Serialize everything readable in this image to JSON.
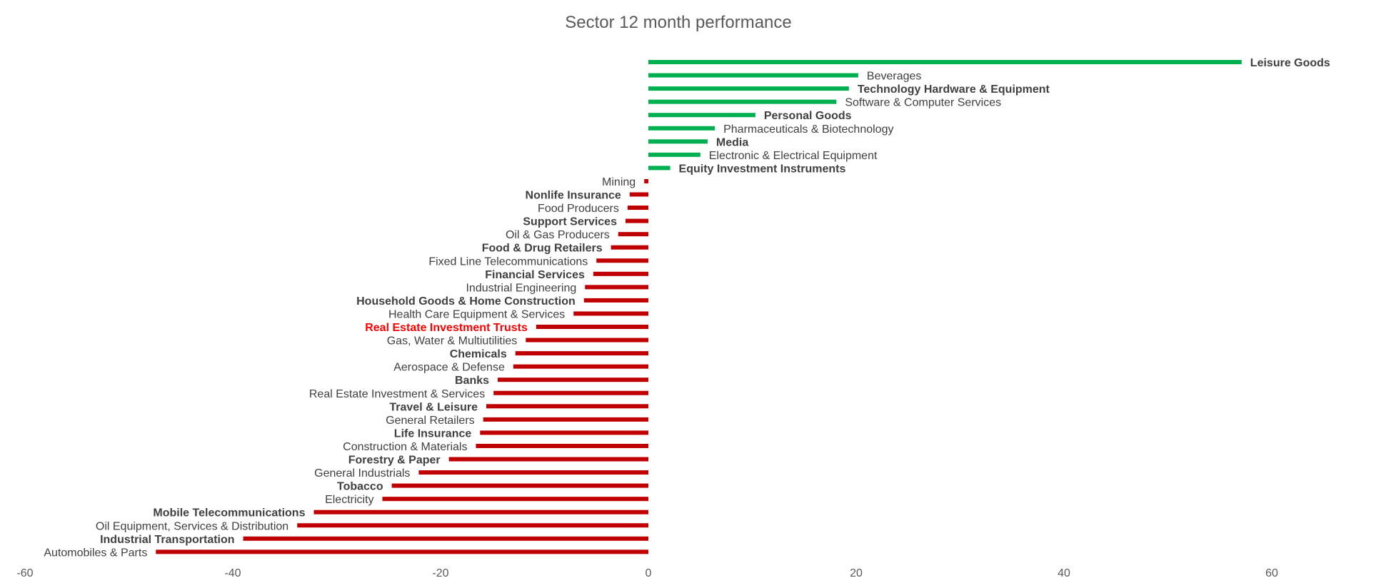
{
  "chart_data": {
    "type": "bar",
    "orientation": "horizontal",
    "title": "Sector 12 month performance",
    "xlabel": "",
    "ylabel": "",
    "xlim": [
      -60,
      70
    ],
    "xticks": [
      -60,
      -40,
      -20,
      0,
      20,
      40,
      60
    ],
    "grid": false,
    "legend": "none",
    "colors": {
      "positive": "#00b050",
      "negative": "#c00000",
      "highlight_label": "#ff0000",
      "label": "#404040"
    },
    "bars": [
      {
        "label": "Leisure Goods",
        "value": 57.1,
        "bold": true
      },
      {
        "label": "Beverages",
        "value": 20.2
      },
      {
        "label": "Technology Hardware & Equipment",
        "value": 19.3,
        "bold": true
      },
      {
        "label": "Software & Computer Services",
        "value": 18.1
      },
      {
        "label": "Personal Goods",
        "value": 10.3,
        "bold": true
      },
      {
        "label": "Pharmaceuticals & Biotechnology",
        "value": 6.4
      },
      {
        "label": "Media",
        "value": 5.7,
        "bold": true
      },
      {
        "label": "Electronic & Electrical Equipment",
        "value": 5.0
      },
      {
        "label": "Equity Investment Instruments",
        "value": 2.1,
        "bold": true
      },
      {
        "label": "Mining",
        "value": -0.4
      },
      {
        "label": "Nonlife Insurance",
        "value": -1.8,
        "bold": true
      },
      {
        "label": "Food Producers",
        "value": -2.0
      },
      {
        "label": "Support Services",
        "value": -2.2,
        "bold": true
      },
      {
        "label": "Oil & Gas Producers",
        "value": -2.9
      },
      {
        "label": "Food & Drug Retailers",
        "value": -3.6,
        "bold": true
      },
      {
        "label": "Fixed Line Telecommunications",
        "value": -5.0
      },
      {
        "label": "Financial Services",
        "value": -5.3,
        "bold": true
      },
      {
        "label": "Industrial Engineering",
        "value": -6.1
      },
      {
        "label": "Household Goods & Home Construction",
        "value": -6.2,
        "bold": true
      },
      {
        "label": "Health Care Equipment & Services",
        "value": -7.2
      },
      {
        "label": "Real Estate Investment Trusts",
        "value": -10.8,
        "bold": true,
        "highlight": true
      },
      {
        "label": "Gas, Water & Multiutilities",
        "value": -11.8
      },
      {
        "label": "Chemicals",
        "value": -12.8,
        "bold": true
      },
      {
        "label": "Aerospace & Defense",
        "value": -13.0
      },
      {
        "label": "Banks",
        "value": -14.5,
        "bold": true
      },
      {
        "label": "Real Estate Investment & Services",
        "value": -14.9
      },
      {
        "label": "Travel & Leisure",
        "value": -15.6,
        "bold": true
      },
      {
        "label": "General Retailers",
        "value": -15.9
      },
      {
        "label": "Life Insurance",
        "value": -16.2,
        "bold": true
      },
      {
        "label": "Construction & Materials",
        "value": -16.6
      },
      {
        "label": "Forestry & Paper",
        "value": -19.2,
        "bold": true
      },
      {
        "label": "General Industrials",
        "value": -22.1
      },
      {
        "label": "Tobacco",
        "value": -24.7,
        "bold": true
      },
      {
        "label": "Electricity",
        "value": -25.6
      },
      {
        "label": "Mobile Telecommunications",
        "value": -32.2,
        "bold": true
      },
      {
        "label": "Oil Equipment, Services & Distribution",
        "value": -33.8
      },
      {
        "label": "Industrial Transportation",
        "value": -39.0,
        "bold": true
      },
      {
        "label": "Automobiles & Parts",
        "value": -47.4
      }
    ]
  }
}
